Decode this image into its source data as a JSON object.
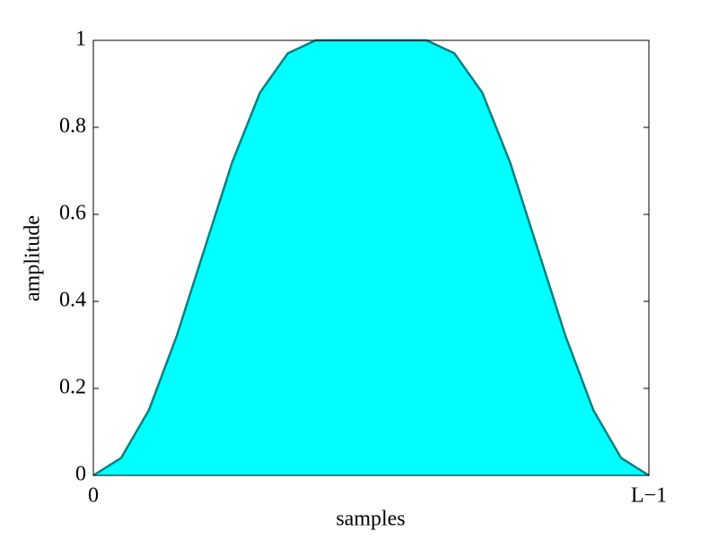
{
  "chart_data": {
    "type": "area",
    "xlabel": "samples",
    "ylabel": "amplitude",
    "x": [
      0,
      0.05,
      0.1,
      0.15,
      0.2,
      0.25,
      0.3,
      0.35,
      0.4,
      0.45,
      0.5,
      0.55,
      0.6,
      0.65,
      0.7,
      0.75,
      0.8,
      0.85,
      0.9,
      0.95,
      1
    ],
    "values": [
      0,
      0.04,
      0.15,
      0.32,
      0.52,
      0.72,
      0.88,
      0.97,
      1,
      1,
      1,
      1,
      1,
      0.97,
      0.88,
      0.72,
      0.52,
      0.32,
      0.15,
      0.04,
      0
    ],
    "fill_color": "#00ffff",
    "line_color": "#008080",
    "xlim": [
      0,
      1
    ],
    "xticks": [
      0,
      {
        "value": 1,
        "label": "L−1"
      }
    ],
    "ylim": [
      0,
      1
    ],
    "yticks": [
      0,
      0.2,
      0.4,
      0.6,
      0.8,
      1
    ]
  }
}
